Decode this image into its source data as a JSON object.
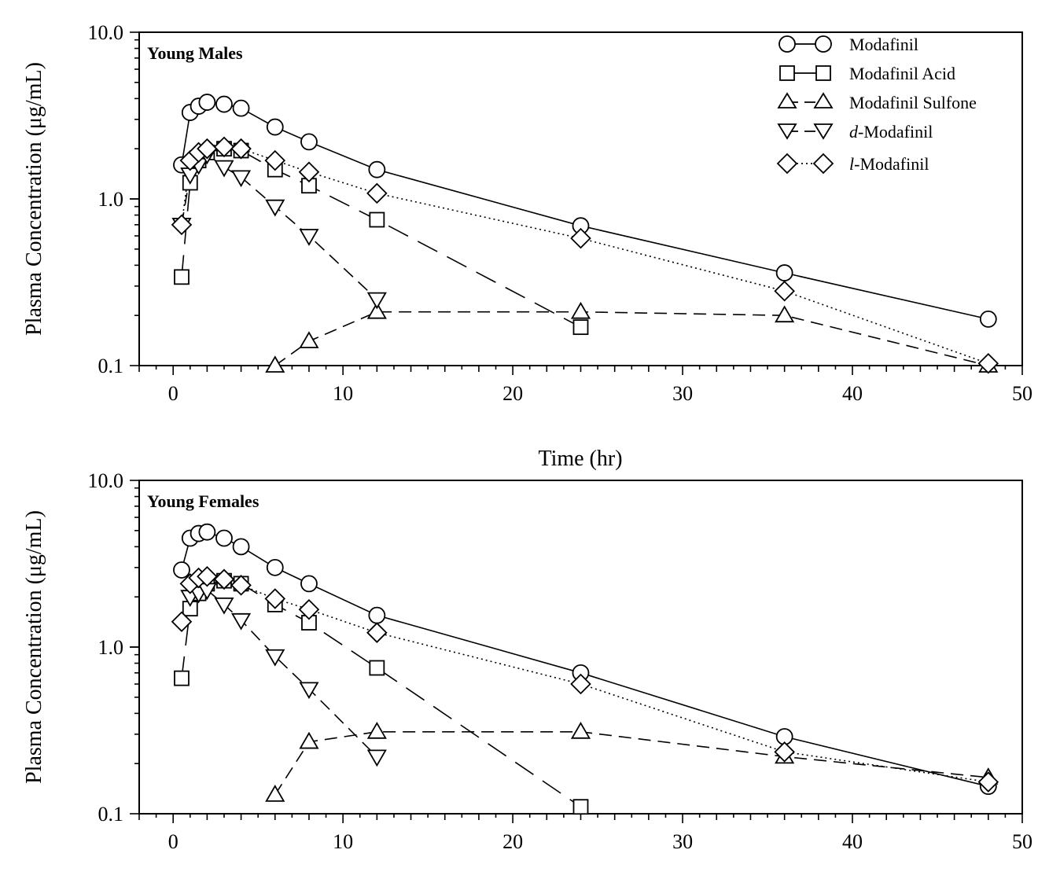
{
  "chart_data": [
    {
      "type": "line",
      "panel_label": "Young Males",
      "xlabel": "",
      "ylabel": "Plasma Concentration (μg/mL)",
      "xlim": [
        -2,
        50
      ],
      "ylim": [
        0.1,
        10.0
      ],
      "yscale": "log",
      "xticks": [
        "0",
        "10",
        "20",
        "30",
        "40",
        "50"
      ],
      "yticks": [
        "0.1",
        "1.0",
        "10.0"
      ],
      "legend_position": "top-right",
      "grid": false,
      "series": [
        {
          "name": "Modafinil",
          "marker": "circle",
          "dash": "solid",
          "points": [
            [
              0.5,
              1.6
            ],
            [
              1,
              3.3
            ],
            [
              1.5,
              3.6
            ],
            [
              2,
              3.8
            ],
            [
              3,
              3.7
            ],
            [
              4,
              3.5
            ],
            [
              6,
              2.7
            ],
            [
              8,
              2.2
            ],
            [
              12,
              1.5
            ],
            [
              24,
              0.69
            ],
            [
              36,
              0.36
            ],
            [
              48,
              0.19
            ]
          ]
        },
        {
          "name": "Modafinil Acid",
          "marker": "square",
          "dash": "longdash",
          "points": [
            [
              0.5,
              0.34
            ],
            [
              1,
              1.25
            ],
            [
              1.5,
              1.7
            ],
            [
              2,
              1.9
            ],
            [
              3,
              2.0
            ],
            [
              4,
              1.95
            ],
            [
              6,
              1.5
            ],
            [
              8,
              1.2
            ],
            [
              12,
              0.75
            ],
            [
              24,
              0.17
            ]
          ]
        },
        {
          "name": "Modafinil Sulfone",
          "marker": "triangle-up",
          "dash": "dash",
          "points": [
            [
              6,
              0.1
            ],
            [
              8,
              0.14
            ],
            [
              12,
              0.21
            ],
            [
              24,
              0.21
            ],
            [
              36,
              0.2
            ],
            [
              48,
              0.1
            ]
          ]
        },
        {
          "name": "d-Modafinil",
          "name_parts": [
            "d",
            "-Modafinil"
          ],
          "marker": "triangle-down",
          "dash": "dash",
          "points": [
            [
              0.5,
              0.7
            ],
            [
              1,
              1.4
            ],
            [
              1.5,
              1.6
            ],
            [
              2,
              1.85
            ],
            [
              3,
              1.55
            ],
            [
              4,
              1.35
            ],
            [
              6,
              0.9
            ],
            [
              8,
              0.6
            ],
            [
              12,
              0.25
            ]
          ]
        },
        {
          "name": "l-Modafinil",
          "name_parts": [
            "l",
            "-Modafinil"
          ],
          "marker": "diamond",
          "dash": "dotted",
          "points": [
            [
              0.5,
              0.7
            ],
            [
              1,
              1.7
            ],
            [
              1.5,
              1.9
            ],
            [
              2,
              2.0
            ],
            [
              3,
              2.05
            ],
            [
              4,
              2.0
            ],
            [
              6,
              1.7
            ],
            [
              8,
              1.45
            ],
            [
              12,
              1.08
            ],
            [
              24,
              0.58
            ],
            [
              36,
              0.28
            ],
            [
              48,
              0.103
            ]
          ]
        }
      ]
    },
    {
      "type": "line",
      "panel_label": "Young Females",
      "xlabel": "Time (hr)",
      "ylabel": "Plasma Concentration (μg/mL)",
      "xlim": [
        -2,
        50
      ],
      "ylim": [
        0.1,
        10.0
      ],
      "yscale": "log",
      "xticks": [
        "0",
        "10",
        "20",
        "30",
        "40",
        "50"
      ],
      "yticks": [
        "0.1",
        "1.0",
        "10.0"
      ],
      "grid": false,
      "series": [
        {
          "name": "Modafinil",
          "marker": "circle",
          "dash": "solid",
          "points": [
            [
              0.5,
              2.9
            ],
            [
              1,
              4.5
            ],
            [
              1.5,
              4.8
            ],
            [
              2,
              4.9
            ],
            [
              3,
              4.5
            ],
            [
              4,
              4.0
            ],
            [
              6,
              3.0
            ],
            [
              8,
              2.4
            ],
            [
              12,
              1.55
            ],
            [
              24,
              0.7
            ],
            [
              36,
              0.29
            ],
            [
              48,
              0.146
            ]
          ]
        },
        {
          "name": "Modafinil Acid",
          "marker": "square",
          "dash": "longdash",
          "points": [
            [
              0.5,
              0.65
            ],
            [
              1,
              1.7
            ],
            [
              1.5,
              2.1
            ],
            [
              2,
              2.4
            ],
            [
              3,
              2.5
            ],
            [
              4,
              2.4
            ],
            [
              6,
              1.8
            ],
            [
              8,
              1.4
            ],
            [
              12,
              0.75
            ],
            [
              24,
              0.11
            ]
          ]
        },
        {
          "name": "Modafinil Sulfone",
          "marker": "triangle-up",
          "dash": "dash",
          "points": [
            [
              6,
              0.13
            ],
            [
              8,
              0.27
            ],
            [
              12,
              0.31
            ],
            [
              24,
              0.31
            ],
            [
              36,
              0.22
            ],
            [
              48,
              0.165
            ]
          ]
        },
        {
          "name": "d-Modafinil",
          "name_parts": [
            "d",
            "-Modafinil"
          ],
          "marker": "triangle-down",
          "dash": "dash",
          "points": [
            [
              1,
              2.0
            ],
            [
              1.5,
              2.1
            ],
            [
              2,
              2.2
            ],
            [
              3,
              1.8
            ],
            [
              4,
              1.45
            ],
            [
              6,
              0.88
            ],
            [
              8,
              0.56
            ],
            [
              12,
              0.22
            ]
          ]
        },
        {
          "name": "l-Modafinil",
          "name_parts": [
            "l",
            "-Modafinil"
          ],
          "marker": "diamond",
          "dash": "dotted",
          "points": [
            [
              0.5,
              1.42
            ],
            [
              1,
              2.4
            ],
            [
              1.5,
              2.6
            ],
            [
              2,
              2.65
            ],
            [
              3,
              2.55
            ],
            [
              4,
              2.35
            ],
            [
              6,
              1.95
            ],
            [
              8,
              1.68
            ],
            [
              12,
              1.22
            ],
            [
              24,
              0.6
            ],
            [
              36,
              0.235
            ],
            [
              48,
              0.155
            ]
          ]
        }
      ]
    }
  ]
}
